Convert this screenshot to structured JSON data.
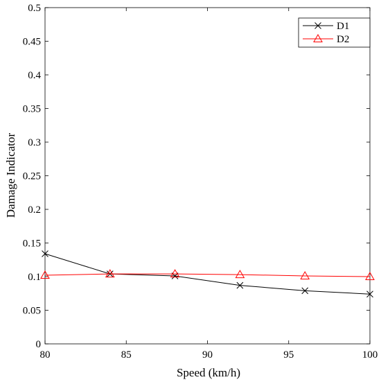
{
  "chart_data": {
    "type": "line",
    "title": "",
    "xlabel": "Speed (km/h)",
    "ylabel": "Damage Indicator",
    "xlim": [
      80,
      100
    ],
    "ylim": [
      0,
      0.5
    ],
    "x_ticks": [
      "80",
      "85",
      "90",
      "95",
      "100"
    ],
    "y_ticks": [
      "0",
      "0.05",
      "0.1",
      "0.15",
      "0.2",
      "0.25",
      "0.3",
      "0.35",
      "0.4",
      "0.45",
      "0.5"
    ],
    "grid": false,
    "legend_position": "top-right",
    "x": [
      80,
      84,
      88,
      92,
      96,
      100
    ],
    "series": [
      {
        "name": "D1",
        "marker": "x",
        "color": "#000000",
        "values": [
          0.134,
          0.104,
          0.101,
          0.087,
          0.079,
          0.074
        ]
      },
      {
        "name": "D2",
        "marker": "triangle",
        "color": "#ff0000",
        "values": [
          0.102,
          0.104,
          0.104,
          0.103,
          0.101,
          0.1
        ]
      }
    ]
  }
}
